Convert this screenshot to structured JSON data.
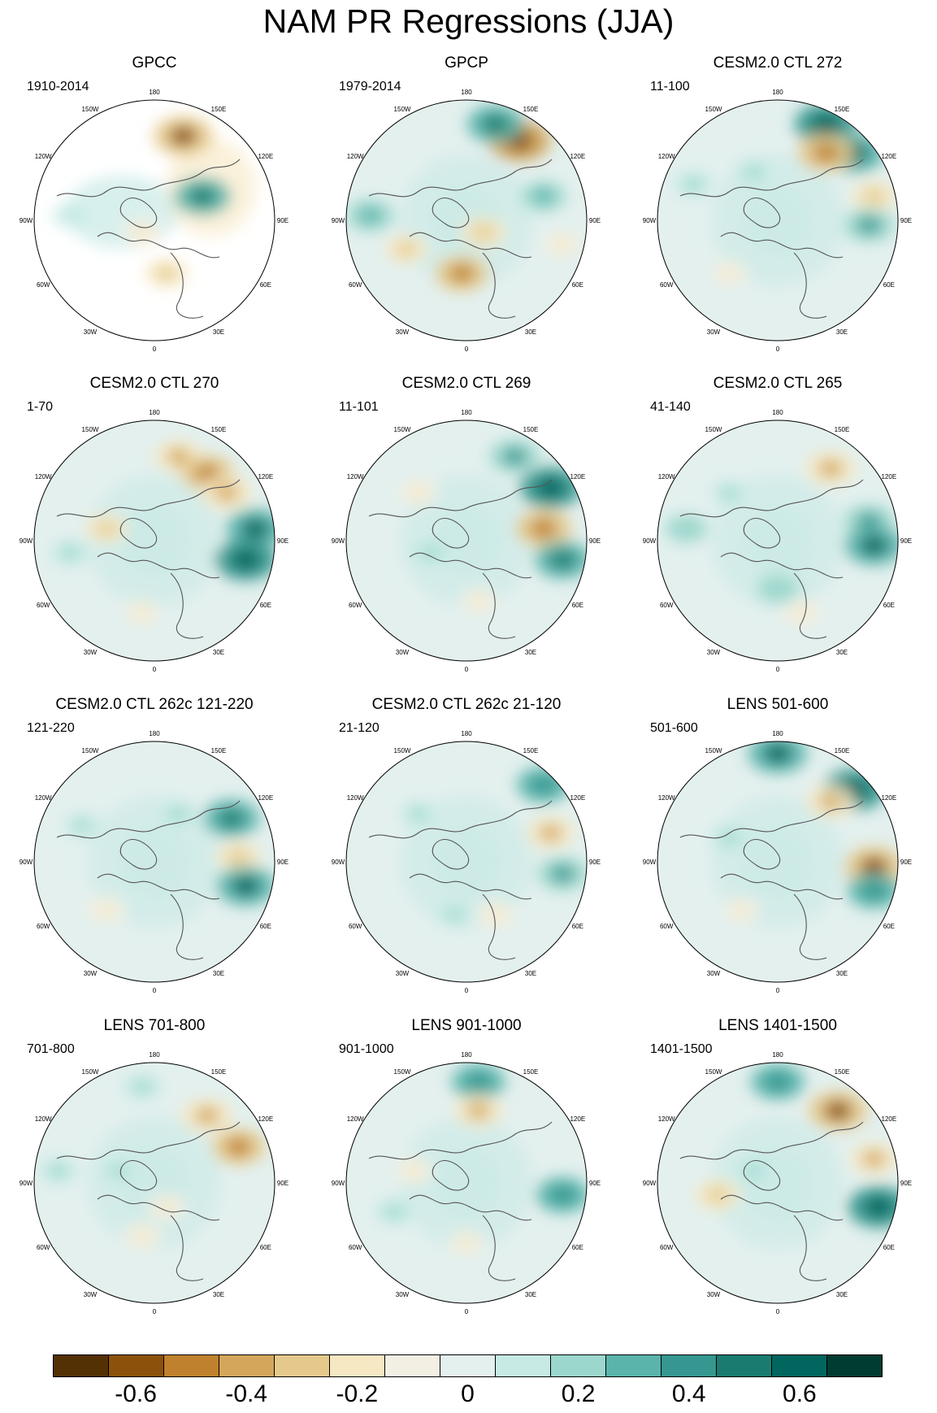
{
  "figure": {
    "title": "NAM PR Regressions (JJA)"
  },
  "chart_data": {
    "type": "polar-map-panels",
    "title": "NAM PR Regressions (JJA)",
    "season": "JJA",
    "variable": "PR",
    "projection": "North Polar Stereographic",
    "longitude_labels": [
      "180",
      "150E",
      "120E",
      "90E",
      "60E",
      "30E",
      "0",
      "30W",
      "60W",
      "90W",
      "120W",
      "150W"
    ],
    "panels": [
      {
        "title": "GPCC",
        "period": "1910-2014",
        "coverage": "land-only",
        "pattern": [
          [
            0.62,
            0.15,
            -0.55
          ],
          [
            0.7,
            0.4,
            0.5
          ],
          [
            0.45,
            0.55,
            -0.22
          ],
          [
            0.15,
            0.48,
            0.12
          ],
          [
            0.55,
            0.72,
            -0.25
          ]
        ]
      },
      {
        "title": "GPCP",
        "period": "1979-2014",
        "coverage": "global",
        "pattern": [
          [
            0.72,
            0.17,
            -0.6
          ],
          [
            0.62,
            0.1,
            0.5
          ],
          [
            0.1,
            0.48,
            0.35
          ],
          [
            0.48,
            0.72,
            -0.45
          ],
          [
            0.57,
            0.55,
            -0.3
          ],
          [
            0.25,
            0.62,
            -0.25
          ],
          [
            0.82,
            0.4,
            0.3
          ],
          [
            0.9,
            0.6,
            -0.2
          ]
        ]
      },
      {
        "title": "CESM2.0 CTL 272",
        "period": "11-100",
        "coverage": "global",
        "pattern": [
          [
            0.7,
            0.1,
            0.6
          ],
          [
            0.82,
            0.22,
            0.55
          ],
          [
            0.7,
            0.22,
            -0.5
          ],
          [
            0.9,
            0.4,
            -0.3
          ],
          [
            0.88,
            0.52,
            0.4
          ],
          [
            0.4,
            0.3,
            0.2
          ],
          [
            0.3,
            0.72,
            -0.15
          ],
          [
            0.15,
            0.35,
            0.2
          ]
        ]
      },
      {
        "title": "CESM2.0 CTL 270",
        "period": "1-70",
        "coverage": "global",
        "pattern": [
          [
            0.6,
            0.15,
            -0.35
          ],
          [
            0.72,
            0.22,
            -0.45
          ],
          [
            0.8,
            0.3,
            -0.4
          ],
          [
            0.92,
            0.45,
            0.55
          ],
          [
            0.88,
            0.58,
            0.6
          ],
          [
            0.3,
            0.45,
            -0.25
          ],
          [
            0.15,
            0.55,
            0.2
          ],
          [
            0.45,
            0.8,
            -0.15
          ]
        ]
      },
      {
        "title": "CESM2.0 CTL 269",
        "period": "11-101",
        "coverage": "global",
        "pattern": [
          [
            0.7,
            0.15,
            0.4
          ],
          [
            0.85,
            0.28,
            0.6
          ],
          [
            0.82,
            0.45,
            -0.5
          ],
          [
            0.9,
            0.58,
            0.5
          ],
          [
            0.3,
            0.3,
            -0.2
          ],
          [
            0.35,
            0.55,
            0.2
          ],
          [
            0.55,
            0.75,
            -0.15
          ]
        ]
      },
      {
        "title": "CESM2.0 CTL 265",
        "period": "41-140",
        "coverage": "global",
        "pattern": [
          [
            0.72,
            0.2,
            -0.4
          ],
          [
            0.88,
            0.42,
            0.4
          ],
          [
            0.9,
            0.52,
            0.55
          ],
          [
            0.12,
            0.45,
            0.25
          ],
          [
            0.5,
            0.7,
            0.25
          ],
          [
            0.6,
            0.8,
            -0.2
          ],
          [
            0.3,
            0.3,
            0.15
          ]
        ]
      },
      {
        "title": "CESM2.0 CTL 262c 121-220",
        "period": "121-220",
        "coverage": "global",
        "pattern": [
          [
            0.82,
            0.32,
            0.5
          ],
          [
            0.85,
            0.48,
            -0.3
          ],
          [
            0.88,
            0.6,
            0.55
          ],
          [
            0.3,
            0.7,
            -0.2
          ],
          [
            0.6,
            0.3,
            0.2
          ],
          [
            0.2,
            0.35,
            0.15
          ]
        ]
      },
      {
        "title": "CESM2.0 CTL 262c 21-120",
        "period": "21-120",
        "coverage": "global",
        "pattern": [
          [
            0.82,
            0.18,
            0.45
          ],
          [
            0.85,
            0.38,
            -0.35
          ],
          [
            0.9,
            0.55,
            0.4
          ],
          [
            0.45,
            0.72,
            0.15
          ],
          [
            0.62,
            0.72,
            -0.2
          ],
          [
            0.3,
            0.3,
            0.15
          ]
        ]
      },
      {
        "title": "LENS 501-600",
        "period": "501-600",
        "coverage": "global",
        "pattern": [
          [
            0.5,
            0.05,
            0.55
          ],
          [
            0.82,
            0.2,
            0.6
          ],
          [
            0.72,
            0.25,
            -0.35
          ],
          [
            0.9,
            0.52,
            -0.55
          ],
          [
            0.9,
            0.62,
            0.45
          ],
          [
            0.3,
            0.4,
            0.2
          ],
          [
            0.35,
            0.7,
            -0.15
          ]
        ]
      },
      {
        "title": "LENS 701-800",
        "period": "701-800",
        "coverage": "global",
        "pattern": [
          [
            0.72,
            0.22,
            -0.4
          ],
          [
            0.85,
            0.35,
            -0.45
          ],
          [
            0.45,
            0.1,
            0.2
          ],
          [
            0.1,
            0.45,
            0.2
          ],
          [
            0.45,
            0.72,
            -0.2
          ],
          [
            0.35,
            0.45,
            0.15
          ],
          [
            0.55,
            0.6,
            -0.2
          ]
        ]
      },
      {
        "title": "LENS 901-1000",
        "period": "901-1000",
        "coverage": "global",
        "pattern": [
          [
            0.55,
            0.08,
            0.45
          ],
          [
            0.55,
            0.2,
            -0.35
          ],
          [
            0.9,
            0.55,
            0.45
          ],
          [
            0.28,
            0.45,
            -0.2
          ],
          [
            0.2,
            0.62,
            0.2
          ],
          [
            0.5,
            0.75,
            -0.15
          ]
        ]
      },
      {
        "title": "LENS 1401-1500",
        "period": "1401-1500",
        "coverage": "global",
        "pattern": [
          [
            0.5,
            0.08,
            0.45
          ],
          [
            0.75,
            0.2,
            -0.55
          ],
          [
            0.9,
            0.4,
            -0.35
          ],
          [
            0.92,
            0.6,
            0.6
          ],
          [
            0.25,
            0.55,
            -0.3
          ],
          [
            0.4,
            0.45,
            0.2
          ]
        ]
      }
    ],
    "colorbar": {
      "levels": [
        "-0.7",
        "-0.6",
        "-0.5",
        "-0.4",
        "-0.3",
        "-0.2",
        "-0.1",
        "0",
        "0.1",
        "0.2",
        "0.3",
        "0.4",
        "0.5",
        "0.6",
        "0.7"
      ],
      "colors": [
        "#543005",
        "#8c510a",
        "#bf812d",
        "#d3a65c",
        "#e5c98c",
        "#f6e8c3",
        "#f3efe3",
        "#e3f0ee",
        "#c7eae5",
        "#9bd7cc",
        "#5ab4ac",
        "#35978f",
        "#1a7c70",
        "#01665e",
        "#003c30"
      ],
      "tick_labels": [
        "-0.6",
        "-0.4",
        "-0.2",
        "0",
        "0.2",
        "0.4",
        "0.6"
      ]
    }
  }
}
